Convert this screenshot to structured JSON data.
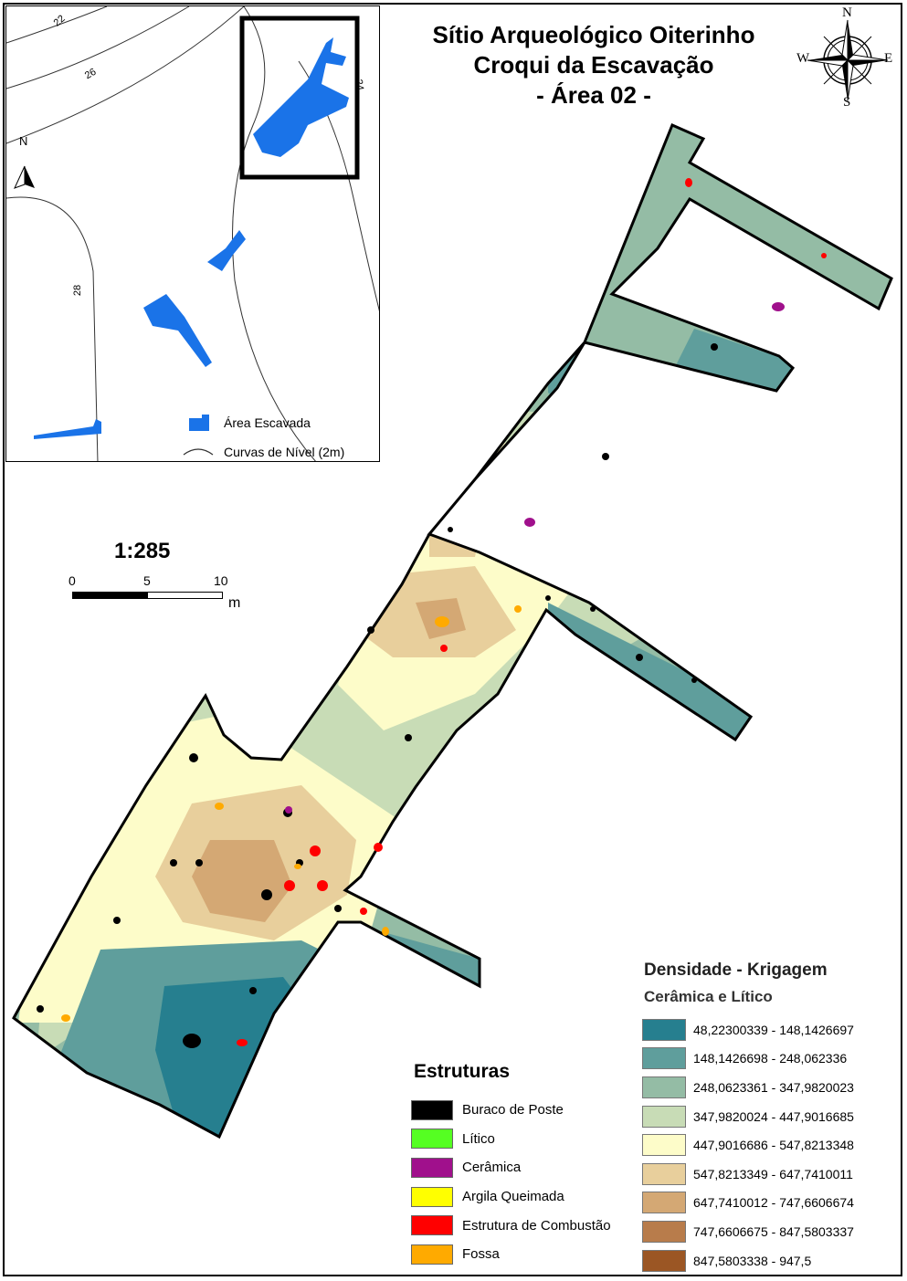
{
  "title": {
    "line1": "Sítio Arqueológico Oiterinho",
    "line2": "Croqui da Escavação",
    "line3": "- Área 02 -"
  },
  "compass": {
    "n": "N",
    "s": "S",
    "e": "E",
    "w": "W"
  },
  "inset": {
    "north_label": "N",
    "contour_labels": [
      "22",
      "26",
      "28",
      "24"
    ],
    "legend": {
      "excavated": "Área Escavada",
      "contours": "Curvas de Nível (2m)"
    },
    "colors": {
      "excavated": "#1a73e8",
      "contour": "#333333"
    }
  },
  "scale": {
    "ratio": "1:285",
    "ticks": [
      "0",
      "5",
      "10"
    ],
    "unit": "m"
  },
  "structures_legend": {
    "title": "Estruturas",
    "items": [
      {
        "label": "Buraco de Poste",
        "color": "#000000"
      },
      {
        "label": "Lítico",
        "color": "#55ff22"
      },
      {
        "label": "Cerâmica",
        "color": "#a0108c"
      },
      {
        "label": "Argila Queimada",
        "color": "#ffff00"
      },
      {
        "label": "Estrutura de Combustão",
        "color": "#ff0000"
      },
      {
        "label": "Fossa",
        "color": "#ffaa00"
      }
    ]
  },
  "density_legend": {
    "title": "Densidade - Krigagem",
    "subtitle": "Cerâmica e Lítico",
    "classes": [
      {
        "label": "48,22300339 - 148,1426697",
        "color": "#267f8f"
      },
      {
        "label": "148,1426698 - 248,062336",
        "color": "#5f9e9c"
      },
      {
        "label": "248,0623361 - 347,9820023",
        "color": "#94bca5"
      },
      {
        "label": "347,9820024 - 447,9016685",
        "color": "#c8dcb6"
      },
      {
        "label": "447,9016686 - 547,8213348",
        "color": "#fdfcc9"
      },
      {
        "label": "547,8213349 - 647,7410011",
        "color": "#e8cf9c"
      },
      {
        "label": "647,7410012 - 747,6606674",
        "color": "#d4a874"
      },
      {
        "label": "747,6606675 - 847,5803337",
        "color": "#b87c4b"
      },
      {
        "label": "847,5803338 - 947,5",
        "color": "#9b5624"
      }
    ]
  }
}
